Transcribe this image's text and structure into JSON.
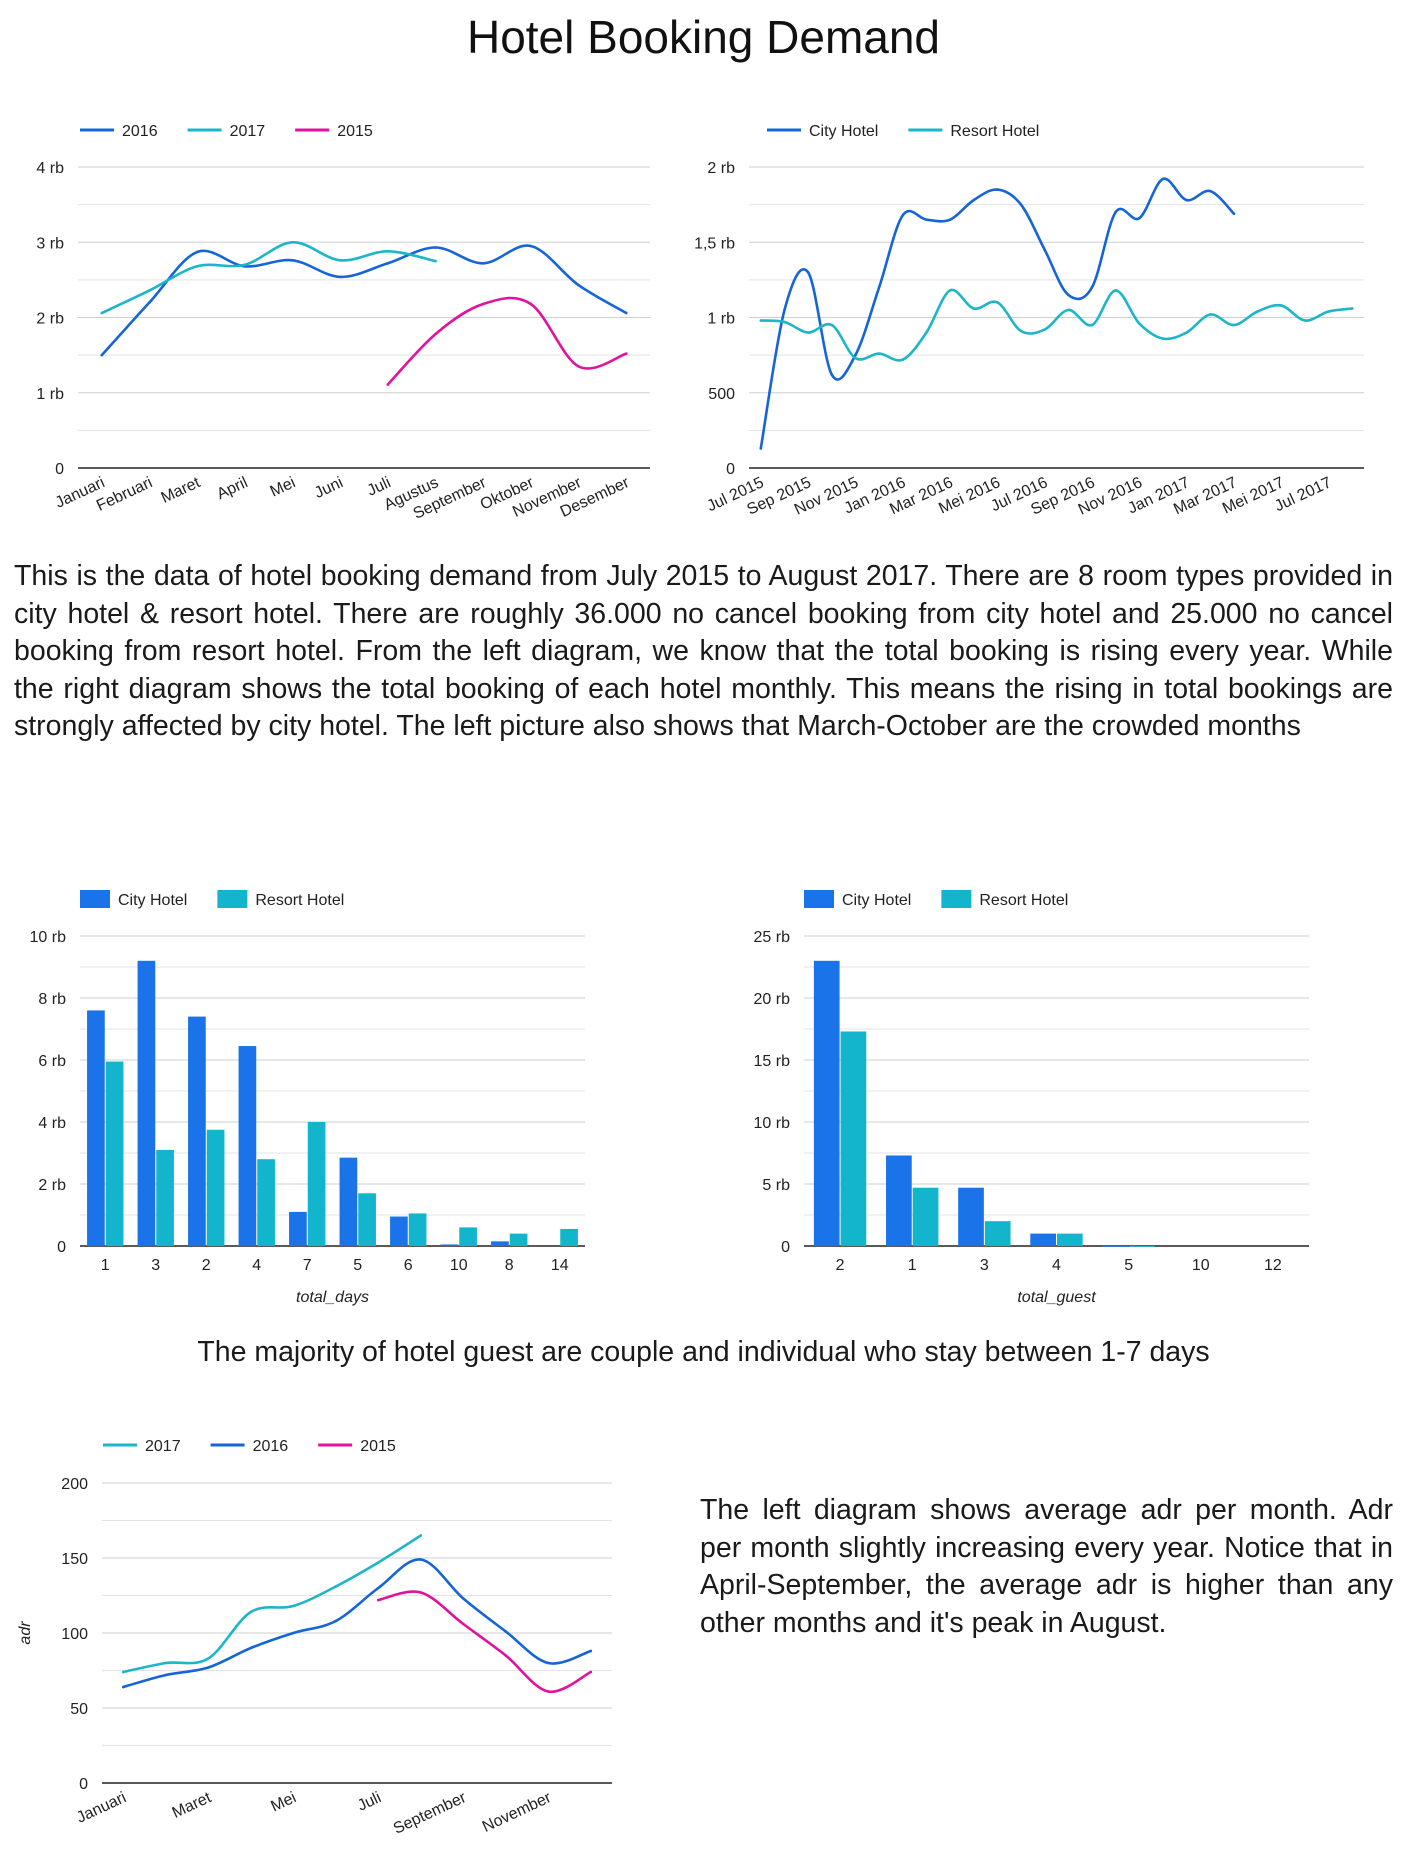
{
  "page": {
    "title": "Hotel Booking Demand",
    "paragraph1": "This is the data of hotel booking demand from July 2015 to August 2017. There are 8 room types provided in city hotel & resort hotel. There are roughly 36.000 no cancel booking from city hotel and 25.000 no cancel booking from resort hotel. From the left diagram, we know that the total booking is rising every year. While the right diagram shows the total booking of each hotel monthly. This means the rising in total bookings are strongly affected by city hotel. The left picture also shows that March-October are the crowded months",
    "caption2": "The majority of hotel guest are couple and individual who stay between 1-7 days",
    "paragraph3": "The left diagram shows average adr per month. Adr per month slightly increasing every year. Notice that in April-September, the average adr is higher than any other months and it's peak in August."
  },
  "chart_data": [
    {
      "id": "bookings_by_month",
      "type": "line",
      "categories": [
        "Januari",
        "Februari",
        "Maret",
        "April",
        "Mei",
        "Juni",
        "Juli",
        "Agustus",
        "September",
        "Oktober",
        "November",
        "Desember"
      ],
      "ylim": [
        0,
        4000
      ],
      "yticks": [
        0,
        1000,
        2000,
        3000,
        4000
      ],
      "ytick_labels": [
        "0",
        "1 rb",
        "2 rb",
        "3 rb",
        "4 rb"
      ],
      "grid": true,
      "legend": "top-left",
      "series": [
        {
          "name": "2016",
          "color": "#1565d8",
          "values": [
            1500,
            2200,
            2870,
            2680,
            2760,
            2540,
            2720,
            2930,
            2720,
            2950,
            2430,
            2060
          ]
        },
        {
          "name": "2017",
          "color": "#1cb6c8",
          "values": [
            2060,
            2360,
            2680,
            2700,
            3000,
            2760,
            2880,
            2750,
            null,
            null,
            null,
            null
          ]
        },
        {
          "name": "2015",
          "color": "#e0139e",
          "values": [
            null,
            null,
            null,
            null,
            null,
            null,
            1110,
            1780,
            2180,
            2180,
            1350,
            1520
          ]
        }
      ]
    },
    {
      "id": "bookings_by_hotel",
      "type": "line",
      "categories": [
        "Jul 2015",
        "Agu 2015",
        "Sep 2015",
        "Okt 2015",
        "Nov 2015",
        "Des 2015",
        "Jan 2016",
        "Feb 2016",
        "Mar 2016",
        "Apr 2016",
        "Mei 2016",
        "Jun 2016",
        "Jul 2016",
        "Agu 2016",
        "Sep 2016",
        "Okt 2016",
        "Nov 2016",
        "Des 2016",
        "Jan 2017",
        "Feb 2017",
        "Mar 2017",
        "Apr 2017",
        "Mei 2017",
        "Jun 2017",
        "Jul 2017",
        "Agu 2017"
      ],
      "xtick_labels": [
        "Jul 2015",
        "Sep 2015",
        "Nov 2015",
        "Jan 2016",
        "Mar 2016",
        "Mei 2016",
        "Jul 2016",
        "Sep 2016",
        "Nov 2016",
        "Jan 2017",
        "Mar 2017",
        "Mei 2017",
        "Jul 2017"
      ],
      "ylim": [
        0,
        2000
      ],
      "yticks": [
        0,
        500,
        1000,
        1500,
        2000
      ],
      "ytick_labels": [
        "0",
        "500",
        "1 rb",
        "1,5 rb",
        "2 rb"
      ],
      "grid": true,
      "legend": "top-left",
      "series": [
        {
          "name": "City Hotel",
          "color": "#1565d8",
          "values": [
            130,
            1050,
            1300,
            620,
            750,
            1200,
            1680,
            1650,
            1650,
            1780,
            1850,
            1750,
            1450,
            1150,
            1200,
            1700,
            1660,
            1920,
            1780,
            1840,
            1690,
            null,
            null,
            null,
            null,
            null
          ]
        },
        {
          "name": "Resort Hotel",
          "color": "#1cb6c8",
          "values": [
            980,
            970,
            900,
            950,
            730,
            760,
            720,
            900,
            1180,
            1060,
            1100,
            910,
            920,
            1050,
            950,
            1180,
            960,
            860,
            900,
            1020,
            950,
            1040,
            1080,
            980,
            1040,
            1060
          ]
        }
      ]
    },
    {
      "id": "bookings_by_total_days",
      "type": "bar",
      "xlabel": "total_days",
      "categories": [
        "1",
        "3",
        "2",
        "4",
        "7",
        "5",
        "6",
        "10",
        "8",
        "14"
      ],
      "ylim": [
        0,
        10000
      ],
      "yticks": [
        0,
        2000,
        4000,
        6000,
        8000,
        10000
      ],
      "ytick_labels": [
        "0",
        "2 rb",
        "4 rb",
        "6 rb",
        "8 rb",
        "10 rb"
      ],
      "grid": true,
      "legend": "top-left",
      "series": [
        {
          "name": "City Hotel",
          "color": "#1a73e8",
          "values": [
            7600,
            9200,
            7400,
            6450,
            1100,
            2850,
            950,
            50,
            150,
            0
          ]
        },
        {
          "name": "Resort Hotel",
          "color": "#12b5cb",
          "values": [
            5950,
            3100,
            3750,
            2800,
            4000,
            1700,
            1050,
            600,
            400,
            550
          ]
        }
      ]
    },
    {
      "id": "bookings_by_total_guest",
      "type": "bar",
      "xlabel": "total_guest",
      "categories": [
        "2",
        "1",
        "3",
        "4",
        "5",
        "10",
        "12"
      ],
      "ylim": [
        0,
        25000
      ],
      "yticks": [
        0,
        5000,
        10000,
        15000,
        20000,
        25000
      ],
      "ytick_labels": [
        "0",
        "5 rb",
        "10 rb",
        "15 rb",
        "20 rb",
        "25 rb"
      ],
      "grid": true,
      "legend": "top-left",
      "series": [
        {
          "name": "City Hotel",
          "color": "#1a73e8",
          "values": [
            23000,
            7300,
            4700,
            1000,
            5,
            0,
            0
          ]
        },
        {
          "name": "Resort Hotel",
          "color": "#12b5cb",
          "values": [
            17300,
            4700,
            2000,
            1000,
            5,
            0,
            0
          ]
        }
      ]
    },
    {
      "id": "adr_by_month",
      "type": "line",
      "categories": [
        "Januari",
        "Februari",
        "Maret",
        "April",
        "Mei",
        "Juni",
        "Juli",
        "Agustus",
        "September",
        "Oktober",
        "November",
        "Desember"
      ],
      "xtick_labels": [
        "Januari",
        "",
        "Maret",
        "",
        "Mei",
        "",
        "Juli",
        "",
        "September",
        "",
        "November",
        ""
      ],
      "ylabel": "adr",
      "ylim": [
        0,
        200
      ],
      "yticks": [
        0,
        50,
        100,
        150,
        200
      ],
      "ytick_labels": [
        "0",
        "50",
        "100",
        "150",
        "200"
      ],
      "grid": true,
      "legend": "top-left",
      "series": [
        {
          "name": "2017",
          "color": "#1cb6c8",
          "values": [
            74,
            80,
            83,
            114,
            118,
            131,
            147,
            165,
            null,
            null,
            null,
            null
          ]
        },
        {
          "name": "2016",
          "color": "#1565d8",
          "values": [
            64,
            72,
            77,
            90,
            100,
            108,
            130,
            149,
            123,
            101,
            80,
            88
          ]
        },
        {
          "name": "2015",
          "color": "#e0139e",
          "values": [
            null,
            null,
            null,
            null,
            null,
            null,
            122,
            127,
            106,
            85,
            61,
            74
          ]
        }
      ]
    }
  ]
}
